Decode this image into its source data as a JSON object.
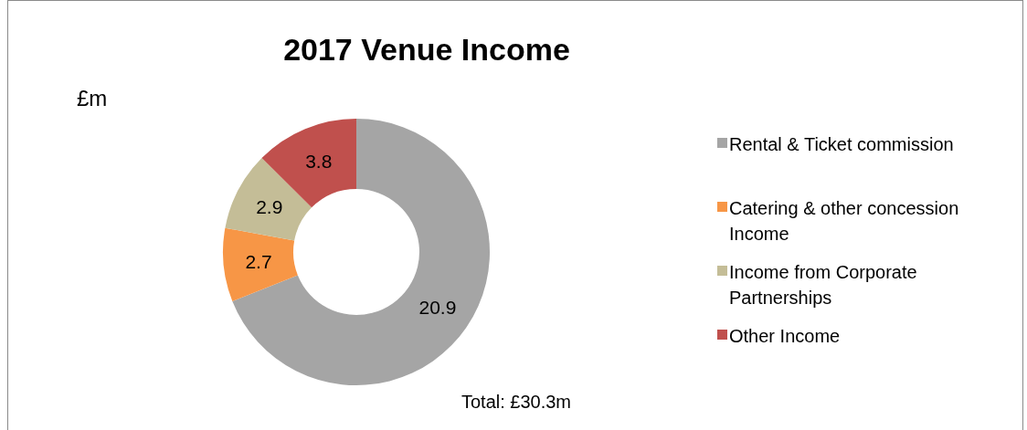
{
  "chart_data": {
    "type": "donut",
    "title": "2017 Venue Income",
    "categories": [
      "Rental & Ticket commission",
      "Catering & other concession Income",
      "Income from Corporate Partnerships",
      "Other Income"
    ],
    "values": [
      20.9,
      2.7,
      2.9,
      3.8
    ],
    "colors": [
      "#a5a5a5",
      "#f79646",
      "#c4bd97",
      "#c0504d"
    ],
    "data_labels": true,
    "legend": "right",
    "annotations": [
      "£m",
      "Total: £30.3m"
    ]
  }
}
